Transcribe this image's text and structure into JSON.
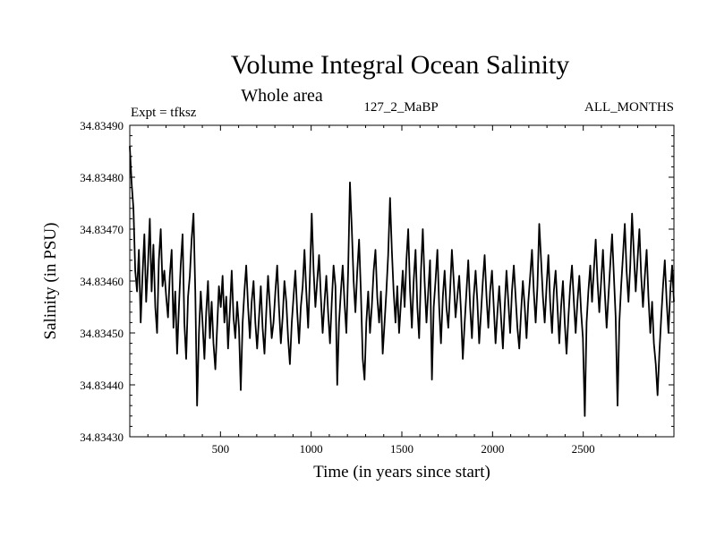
{
  "chart_data": {
    "type": "line",
    "title": "Volume Integral Ocean Salinity",
    "subtitle": "Whole area",
    "annotations": {
      "left": "Expt = tfksz",
      "center": "127_2_MaBP",
      "right": "ALL_MONTHS"
    },
    "xlabel": "Time (in years since start)",
    "ylabel": "Salinity (in PSU)",
    "xlim": [
      0,
      3000
    ],
    "ylim": [
      34.8343,
      34.8349
    ],
    "xticks": [
      500,
      1000,
      1500,
      2000,
      2500
    ],
    "yticks": [
      34.8343,
      34.8344,
      34.8345,
      34.8346,
      34.8347,
      34.8348,
      34.8349
    ],
    "ytick_labels": [
      "34.83430",
      "34.83440",
      "34.83450",
      "34.83460",
      "34.83470",
      "34.83480",
      "34.83490"
    ],
    "grid": false,
    "series": [
      {
        "name": "Salinity",
        "x_step": 10,
        "x_start": 0,
        "values": [
          34.83486,
          34.83479,
          34.83474,
          34.83462,
          34.83458,
          34.83466,
          34.83452,
          34.83461,
          34.83469,
          34.83456,
          34.83463,
          34.83472,
          34.83458,
          34.83467,
          34.83455,
          34.8345,
          34.83464,
          34.8347,
          34.83459,
          34.83462,
          34.83457,
          34.83453,
          34.83461,
          34.83466,
          34.83451,
          34.83458,
          34.83446,
          34.83455,
          34.83463,
          34.83469,
          34.83452,
          34.83445,
          34.83457,
          34.83461,
          34.83468,
          34.83473,
          34.83458,
          34.83436,
          34.8345,
          34.83458,
          34.83452,
          34.83445,
          34.83454,
          34.8346,
          34.83449,
          34.83456,
          34.83448,
          34.83443,
          34.83451,
          34.83459,
          34.83455,
          34.83461,
          34.83452,
          34.83457,
          34.83447,
          34.83454,
          34.83462,
          34.83453,
          34.83449,
          34.83456,
          34.83451,
          34.83439,
          34.83452,
          34.83458,
          34.83463,
          34.83455,
          34.83449,
          34.83456,
          34.8346,
          34.83452,
          34.83447,
          34.83453,
          34.83459,
          34.83451,
          34.83446,
          34.83454,
          34.83461,
          34.83455,
          34.83449,
          34.83452,
          34.83458,
          34.83463,
          34.83455,
          34.83448,
          34.83453,
          34.8346,
          34.83456,
          34.83449,
          34.83444,
          34.83452,
          34.83457,
          34.83462,
          34.83454,
          34.83448,
          34.83455,
          34.83459,
          34.83466,
          34.83458,
          34.83451,
          34.83461,
          34.83473,
          34.83462,
          34.83455,
          34.8346,
          34.83465,
          34.83457,
          34.8345,
          34.83456,
          34.83461,
          34.83454,
          34.83448,
          34.83456,
          34.83463,
          34.83459,
          34.8344,
          34.83452,
          34.83458,
          34.83463,
          34.83456,
          34.8345,
          34.83462,
          34.83479,
          34.8347,
          34.8346,
          34.83454,
          34.83462,
          34.83468,
          34.83458,
          34.83445,
          34.83441,
          34.83452,
          34.83458,
          34.8345,
          34.83455,
          34.83462,
          34.83466,
          34.83457,
          34.83452,
          34.83458,
          34.83446,
          34.83452,
          34.83458,
          34.83465,
          34.83476,
          34.83466,
          34.83458,
          34.83452,
          34.83459,
          34.8345,
          34.83456,
          34.83462,
          34.83455,
          34.83464,
          34.8347,
          34.83458,
          34.83451,
          34.8346,
          34.83466,
          34.83455,
          34.83449,
          34.83462,
          34.8347,
          34.8346,
          34.83452,
          34.83458,
          34.83464,
          34.83441,
          34.83455,
          34.8346,
          34.83466,
          34.83455,
          34.83448,
          34.83457,
          34.83462,
          34.83455,
          34.83451,
          34.83458,
          34.83466,
          34.8346,
          34.83453,
          34.83457,
          34.83461,
          34.83454,
          34.83445,
          34.83452,
          34.83458,
          34.83464,
          34.83455,
          34.83449,
          34.83457,
          34.83462,
          34.83456,
          34.83448,
          34.83454,
          34.8346,
          34.83465,
          34.83457,
          34.83451,
          34.83458,
          34.83462,
          34.83455,
          34.83448,
          34.83454,
          34.83459,
          34.83453,
          34.83447,
          34.83455,
          34.83462,
          34.83456,
          34.8345,
          34.83458,
          34.83463,
          34.83457,
          34.83451,
          34.83447,
          34.83454,
          34.8346,
          34.83455,
          34.83449,
          34.83456,
          34.83461,
          34.83466,
          34.83458,
          34.83452,
          34.83459,
          34.83471,
          34.83464,
          34.83457,
          34.83452,
          34.83459,
          34.83465,
          34.83456,
          34.8345,
          34.83458,
          34.83462,
          34.83455,
          34.83448,
          34.83455,
          34.8346,
          34.83452,
          34.83446,
          34.83453,
          34.83459,
          34.83463,
          34.83456,
          34.8345,
          34.83456,
          34.83461,
          34.83454,
          34.83449,
          34.83434,
          34.83452,
          34.83458,
          34.83463,
          34.83456,
          34.83462,
          34.83468,
          34.8346,
          34.83454,
          34.8346,
          34.83466,
          34.83458,
          34.83451,
          34.83457,
          34.83463,
          34.83469,
          34.83461,
          34.83453,
          34.83436,
          34.83452,
          34.83459,
          34.83465,
          34.83471,
          34.83462,
          34.83456,
          34.83463,
          34.83473,
          34.83465,
          34.83458,
          34.83464,
          34.8347,
          34.83461,
          34.83455,
          34.83461,
          34.83466,
          34.83457,
          34.8345,
          34.83456,
          34.83448,
          34.83444,
          34.83438,
          34.83446,
          34.83453,
          34.83459,
          34.83464,
          34.83456,
          34.8345,
          34.83458,
          34.83463,
          34.83456
        ]
      }
    ]
  }
}
